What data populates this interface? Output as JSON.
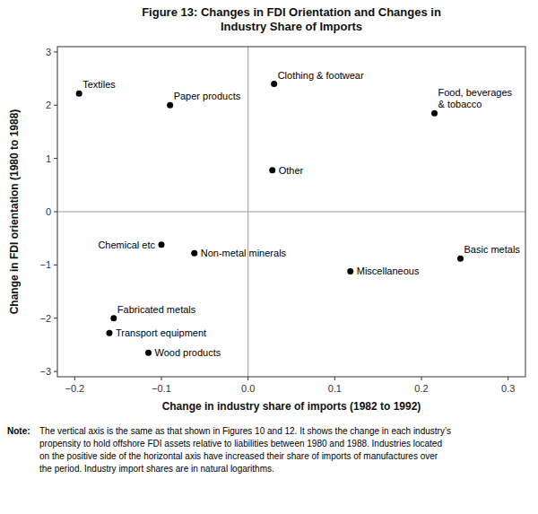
{
  "chart_data": {
    "type": "scatter",
    "title": "Figure 13: Changes in FDI Orientation and Changes in\nIndustry Share of Imports",
    "xlabel": "Change in industry share of imports (1982 to 1992)",
    "ylabel": "Change in FDI orientation (1980 to 1988)",
    "xlim": [
      -0.22,
      0.32
    ],
    "ylim": [
      -3.1,
      3.1
    ],
    "xticks": [
      {
        "value": -0.2,
        "label": "−0.2"
      },
      {
        "value": -0.1,
        "label": "−0.1"
      },
      {
        "value": 0.0,
        "label": "0.0"
      },
      0.1,
      0.2,
      0.3
    ],
    "yticks": [
      {
        "value": -3,
        "label": "−3"
      },
      {
        "value": -2,
        "label": "−2"
      },
      {
        "value": -1,
        "label": "−1"
      },
      0,
      1,
      2,
      3
    ],
    "x": [
      -0.195,
      -0.09,
      0.03,
      0.215,
      0.028,
      -0.1,
      -0.062,
      0.245,
      0.118,
      -0.155,
      -0.16,
      -0.115
    ],
    "values": [
      2.22,
      2.0,
      2.4,
      1.85,
      0.78,
      -0.62,
      -0.78,
      -0.88,
      -1.12,
      -2.0,
      -2.28,
      -2.65
    ],
    "point_labels": [
      "Textiles",
      "Paper products",
      "Clothing & footwear",
      "Food, beverages\n& tobacco",
      "Other",
      "Chemical etc",
      "Non-metal minerals",
      "Basic metals",
      "Miscellaneous",
      "Fabricated metals",
      "Transport equipment",
      "Wood products"
    ],
    "hlines": [
      0
    ],
    "vlines": [
      0
    ],
    "color": "#000000",
    "grid": false,
    "note": {
      "label": "Note:",
      "lines": [
        "The vertical axis is the same as that shown in Figures 10 and 12. It shows the change in each industry’s",
        "propensity to hold offshore FDI assets relative to liabilities between 1980 and 1988. Industries located",
        "on the positive side of the horizontal axis have increased their share of imports of manufactures over",
        "the period. Industry import shares are in natural logarithms."
      ]
    }
  }
}
